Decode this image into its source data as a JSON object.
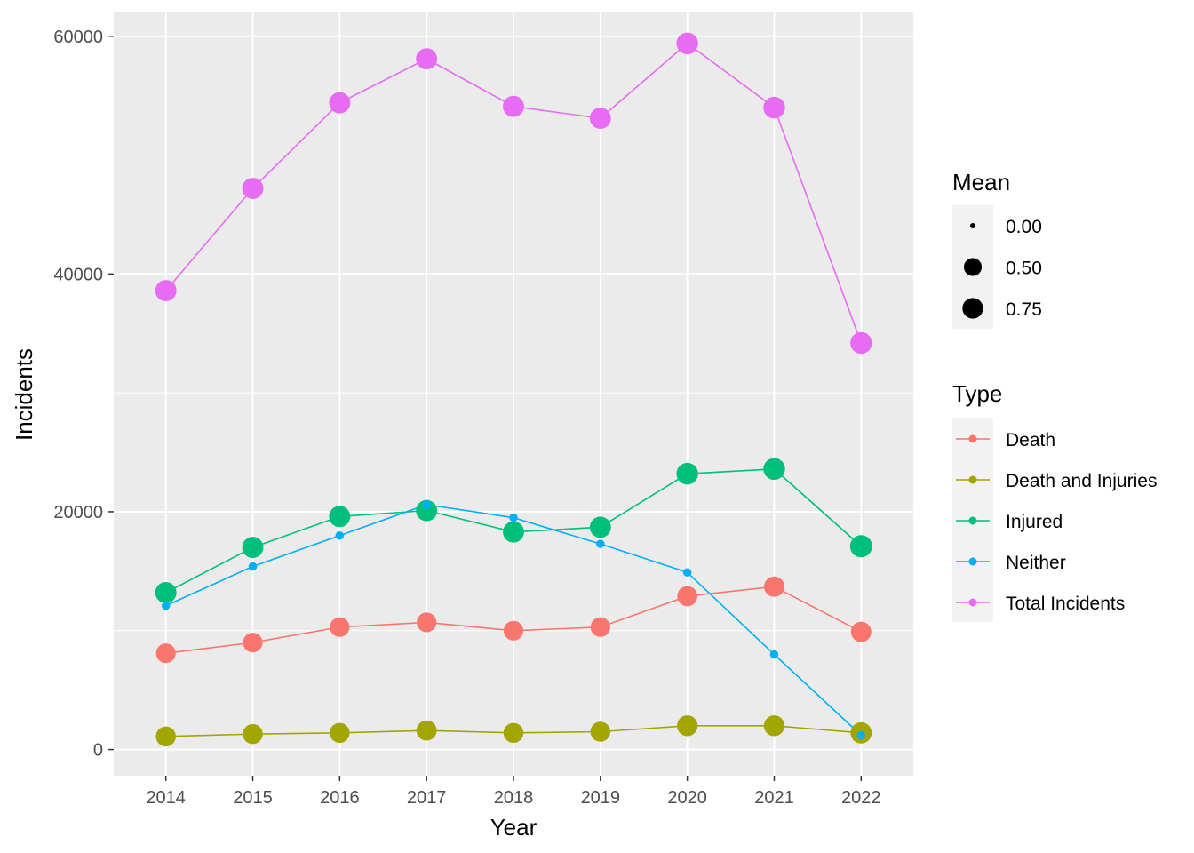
{
  "chart_data": {
    "type": "line",
    "xlabel": "Year",
    "ylabel": "Incidents",
    "x": [
      2014,
      2015,
      2016,
      2017,
      2018,
      2019,
      2020,
      2021,
      2022
    ],
    "xlim": [
      2013.4,
      2022.6
    ],
    "ylim": [
      -2200,
      62000
    ],
    "yticks": [
      0,
      20000,
      40000,
      60000
    ],
    "yticks_minor": [
      10000,
      30000,
      50000
    ],
    "grid": true,
    "panel_background": "#EBEBEB",
    "series": [
      {
        "name": "Death",
        "color": "#F8766D",
        "values": [
          8100,
          9000,
          10300,
          10700,
          10000,
          10300,
          12900,
          13700,
          9900
        ],
        "mean": [
          0.65,
          0.65,
          0.65,
          0.65,
          0.65,
          0.65,
          0.7,
          0.72,
          0.72
        ]
      },
      {
        "name": "Death and Injuries",
        "color": "#A3A500",
        "values": [
          1100,
          1300,
          1400,
          1600,
          1400,
          1500,
          2000,
          2000,
          1400
        ],
        "mean": [
          0.68,
          0.68,
          0.68,
          0.7,
          0.68,
          0.68,
          0.75,
          0.75,
          0.8
        ]
      },
      {
        "name": "Injured",
        "color": "#00BF7D",
        "values": [
          13200,
          17000,
          19600,
          20100,
          18300,
          18700,
          23200,
          23600,
          17100
        ],
        "mean": [
          0.8,
          0.8,
          0.8,
          0.8,
          0.8,
          0.8,
          0.85,
          0.85,
          0.9
        ]
      },
      {
        "name": "Neither",
        "color": "#00B0F6",
        "values": [
          12100,
          15400,
          18000,
          20600,
          19500,
          17300,
          14900,
          8000,
          1200
        ],
        "mean": [
          0.03,
          0.03,
          0.03,
          0.03,
          0.03,
          0.03,
          0.03,
          0.03,
          0.03
        ]
      },
      {
        "name": "Total Incidents",
        "color": "#E76BF3",
        "values": [
          38600,
          47200,
          54400,
          58100,
          54100,
          53100,
          59400,
          54000,
          34200
        ],
        "mean": [
          0.8,
          0.8,
          0.8,
          0.8,
          0.8,
          0.8,
          0.85,
          0.85,
          0.85
        ]
      }
    ],
    "legends": {
      "mean": {
        "title": "Mean",
        "entries": [
          {
            "label": "0.00",
            "value": 0.0
          },
          {
            "label": "0.50",
            "value": 0.5
          },
          {
            "label": "0.75",
            "value": 0.75
          }
        ]
      },
      "type": {
        "title": "Type"
      }
    },
    "legend_position": "right"
  }
}
